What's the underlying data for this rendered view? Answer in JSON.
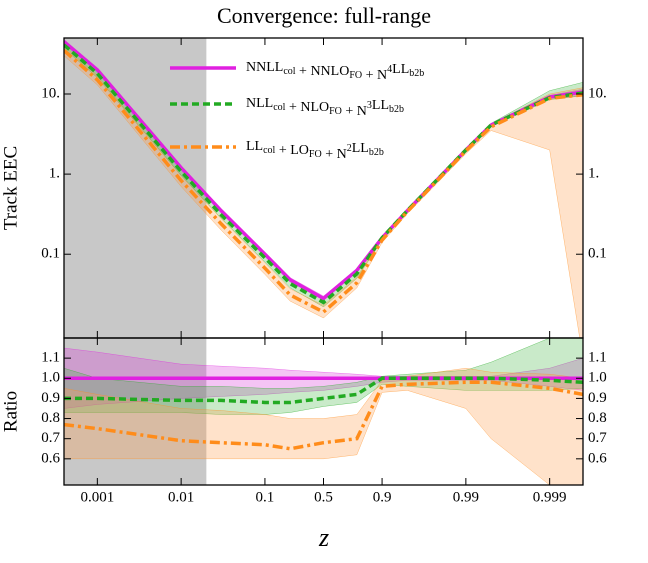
{
  "chart_data": {
    "type": "line",
    "title": "Convergence: full-range",
    "xlabel": "z",
    "x_scale": "log-symmetric-about-0.5",
    "xlim": [
      0.0004,
      0.9996
    ],
    "xticks": [
      0.001,
      0.01,
      0.1,
      0.5,
      0.9,
      0.99,
      0.999
    ],
    "shade_until": 0.02,
    "shade_color": "#c8c8c8",
    "legend": "upper-center",
    "x": [
      0.0004,
      0.001,
      0.01,
      0.03,
      0.1,
      0.2,
      0.5,
      0.8,
      0.9,
      0.95,
      0.99,
      0.995,
      0.999,
      0.9996
    ],
    "panels": [
      {
        "ylabel": "Track EEC",
        "log_y": true,
        "ylim": [
          0.009,
          50
        ],
        "yticks": [
          0.1,
          {
            "value": 1,
            "label": "1."
          },
          {
            "value": 10,
            "label": "10."
          }
        ],
        "series": [
          {
            "name_parts": [
              {
                "t": "NNLL"
              },
              {
                "t": "col",
                "s": "sub"
              },
              {
                "t": " + NNLO"
              },
              {
                "t": "FO",
                "s": "sub"
              },
              {
                "t": " + N"
              },
              {
                "t": "4",
                "s": "sup"
              },
              {
                "t": "LL"
              },
              {
                "t": "b2b",
                "s": "sub"
              }
            ],
            "color": "#e020e0",
            "dash": "solid",
            "band_color": "rgba(220,60,220,0.30)",
            "values": [
              45,
              20,
              1.2,
              0.35,
              0.1,
              0.048,
              0.028,
              0.063,
              0.16,
              0.35,
              2.0,
              4.1,
              9.2,
              10.6
            ],
            "lower": [
              42,
              19,
              1.13,
              0.33,
              0.094,
              0.045,
              0.027,
              0.06,
              0.155,
              0.34,
              1.95,
              4.0,
              8.6,
              9.6
            ],
            "upper": [
              48,
              21,
              1.27,
              0.37,
              0.106,
              0.051,
              0.03,
              0.066,
              0.165,
              0.36,
              2.05,
              4.2,
              9.6,
              11.5
            ]
          },
          {
            "name_parts": [
              {
                "t": "NLL"
              },
              {
                "t": "col",
                "s": "sub"
              },
              {
                "t": " + NLO"
              },
              {
                "t": "FO",
                "s": "sub"
              },
              {
                "t": " + N"
              },
              {
                "t": "3",
                "s": "sup"
              },
              {
                "t": "LL"
              },
              {
                "t": "b2b",
                "s": "sub"
              }
            ],
            "color": "#22aa22",
            "dash": "dashed",
            "band_color": "rgba(60,180,60,0.28)",
            "values": [
              41,
              18,
              1.08,
              0.31,
              0.09,
              0.043,
              0.025,
              0.057,
              0.16,
              0.35,
              2.0,
              4.1,
              9.0,
              10.3
            ],
            "lower": [
              37,
              16,
              0.97,
              0.28,
              0.08,
              0.038,
              0.022,
              0.05,
              0.15,
              0.33,
              1.9,
              3.9,
              8.5,
              9.5
            ],
            "upper": [
              45,
              20,
              1.2,
              0.34,
              0.1,
              0.048,
              0.028,
              0.063,
              0.17,
              0.37,
              2.1,
              4.3,
              11,
              14
            ]
          },
          {
            "name_parts": [
              {
                "t": "LL"
              },
              {
                "t": "col",
                "s": "sub"
              },
              {
                "t": " + LO"
              },
              {
                "t": "FO",
                "s": "sub"
              },
              {
                "t": " + N"
              },
              {
                "t": "2",
                "s": "sup"
              },
              {
                "t": "LL"
              },
              {
                "t": "b2b",
                "s": "sub"
              }
            ],
            "color": "#ff8c1a",
            "dash": "dashdot",
            "band_color": "rgba(255,160,80,0.30)",
            "values": [
              35,
              15,
              0.83,
              0.24,
              0.067,
              0.031,
              0.019,
              0.044,
              0.15,
              0.34,
              1.95,
              3.9,
              8.8,
              9.8
            ],
            "lower": [
              30,
              13,
              0.7,
              0.2,
              0.056,
              0.026,
              0.016,
              0.038,
              0.14,
              0.32,
              1.8,
              3.5,
              2,
              0.005
            ],
            "upper": [
              40,
              17,
              0.95,
              0.28,
              0.078,
              0.037,
              0.023,
              0.052,
              0.16,
              0.36,
              2.1,
              4.2,
              10,
              12
            ]
          }
        ]
      },
      {
        "ylabel": "Ratio",
        "log_y": false,
        "ylim": [
          0.47,
          1.2
        ],
        "yticks": [
          0.6,
          0.7,
          0.8,
          0.9,
          {
            "value": 1,
            "label": "1.0"
          },
          1.1
        ],
        "series": [
          {
            "color": "#e020e0",
            "dash": "solid",
            "band_color": "rgba(220,60,220,0.30)",
            "values": [
              1,
              1,
              1,
              1,
              1,
              1,
              1,
              1,
              1,
              1,
              1,
              1,
              1,
              1
            ],
            "lower": [
              0.85,
              0.87,
              0.9,
              0.91,
              0.92,
              0.93,
              0.94,
              0.96,
              0.98,
              0.99,
              0.99,
              0.99,
              0.96,
              0.94
            ],
            "upper": [
              1.15,
              1.13,
              1.07,
              1.06,
              1.05,
              1.04,
              1.03,
              1.02,
              1.01,
              1.01,
              1.01,
              1.01,
              1.05,
              1.1
            ]
          },
          {
            "color": "#22aa22",
            "dash": "dashed",
            "band_color": "rgba(60,180,60,0.28)",
            "values": [
              0.9,
              0.9,
              0.89,
              0.89,
              0.88,
              0.88,
              0.9,
              0.92,
              1.0,
              1.0,
              1.0,
              1.0,
              0.99,
              0.98
            ],
            "lower": [
              0.83,
              0.83,
              0.83,
              0.82,
              0.82,
              0.83,
              0.86,
              0.88,
              0.97,
              0.96,
              0.94,
              0.94,
              0.94,
              0.95
            ],
            "upper": [
              1.05,
              1.0,
              0.96,
              0.96,
              0.95,
              0.95,
              0.96,
              0.98,
              1.01,
              1.02,
              1.04,
              1.08,
              1.2,
              1.25
            ]
          },
          {
            "color": "#ff8c1a",
            "dash": "dashdot",
            "band_color": "rgba(255,160,80,0.30)",
            "values": [
              0.77,
              0.75,
              0.69,
              0.68,
              0.67,
              0.65,
              0.68,
              0.7,
              0.96,
              0.97,
              0.98,
              0.98,
              0.95,
              0.92
            ],
            "lower": [
              0.6,
              0.6,
              0.6,
              0.6,
              0.6,
              0.6,
              0.6,
              0.62,
              0.93,
              0.94,
              0.85,
              0.7,
              0.47,
              0.47
            ],
            "upper": [
              0.95,
              0.92,
              0.85,
              0.84,
              0.82,
              0.8,
              0.8,
              0.82,
              0.99,
              1.01,
              1.05,
              1.03,
              1.02,
              1.0
            ]
          }
        ]
      }
    ]
  }
}
